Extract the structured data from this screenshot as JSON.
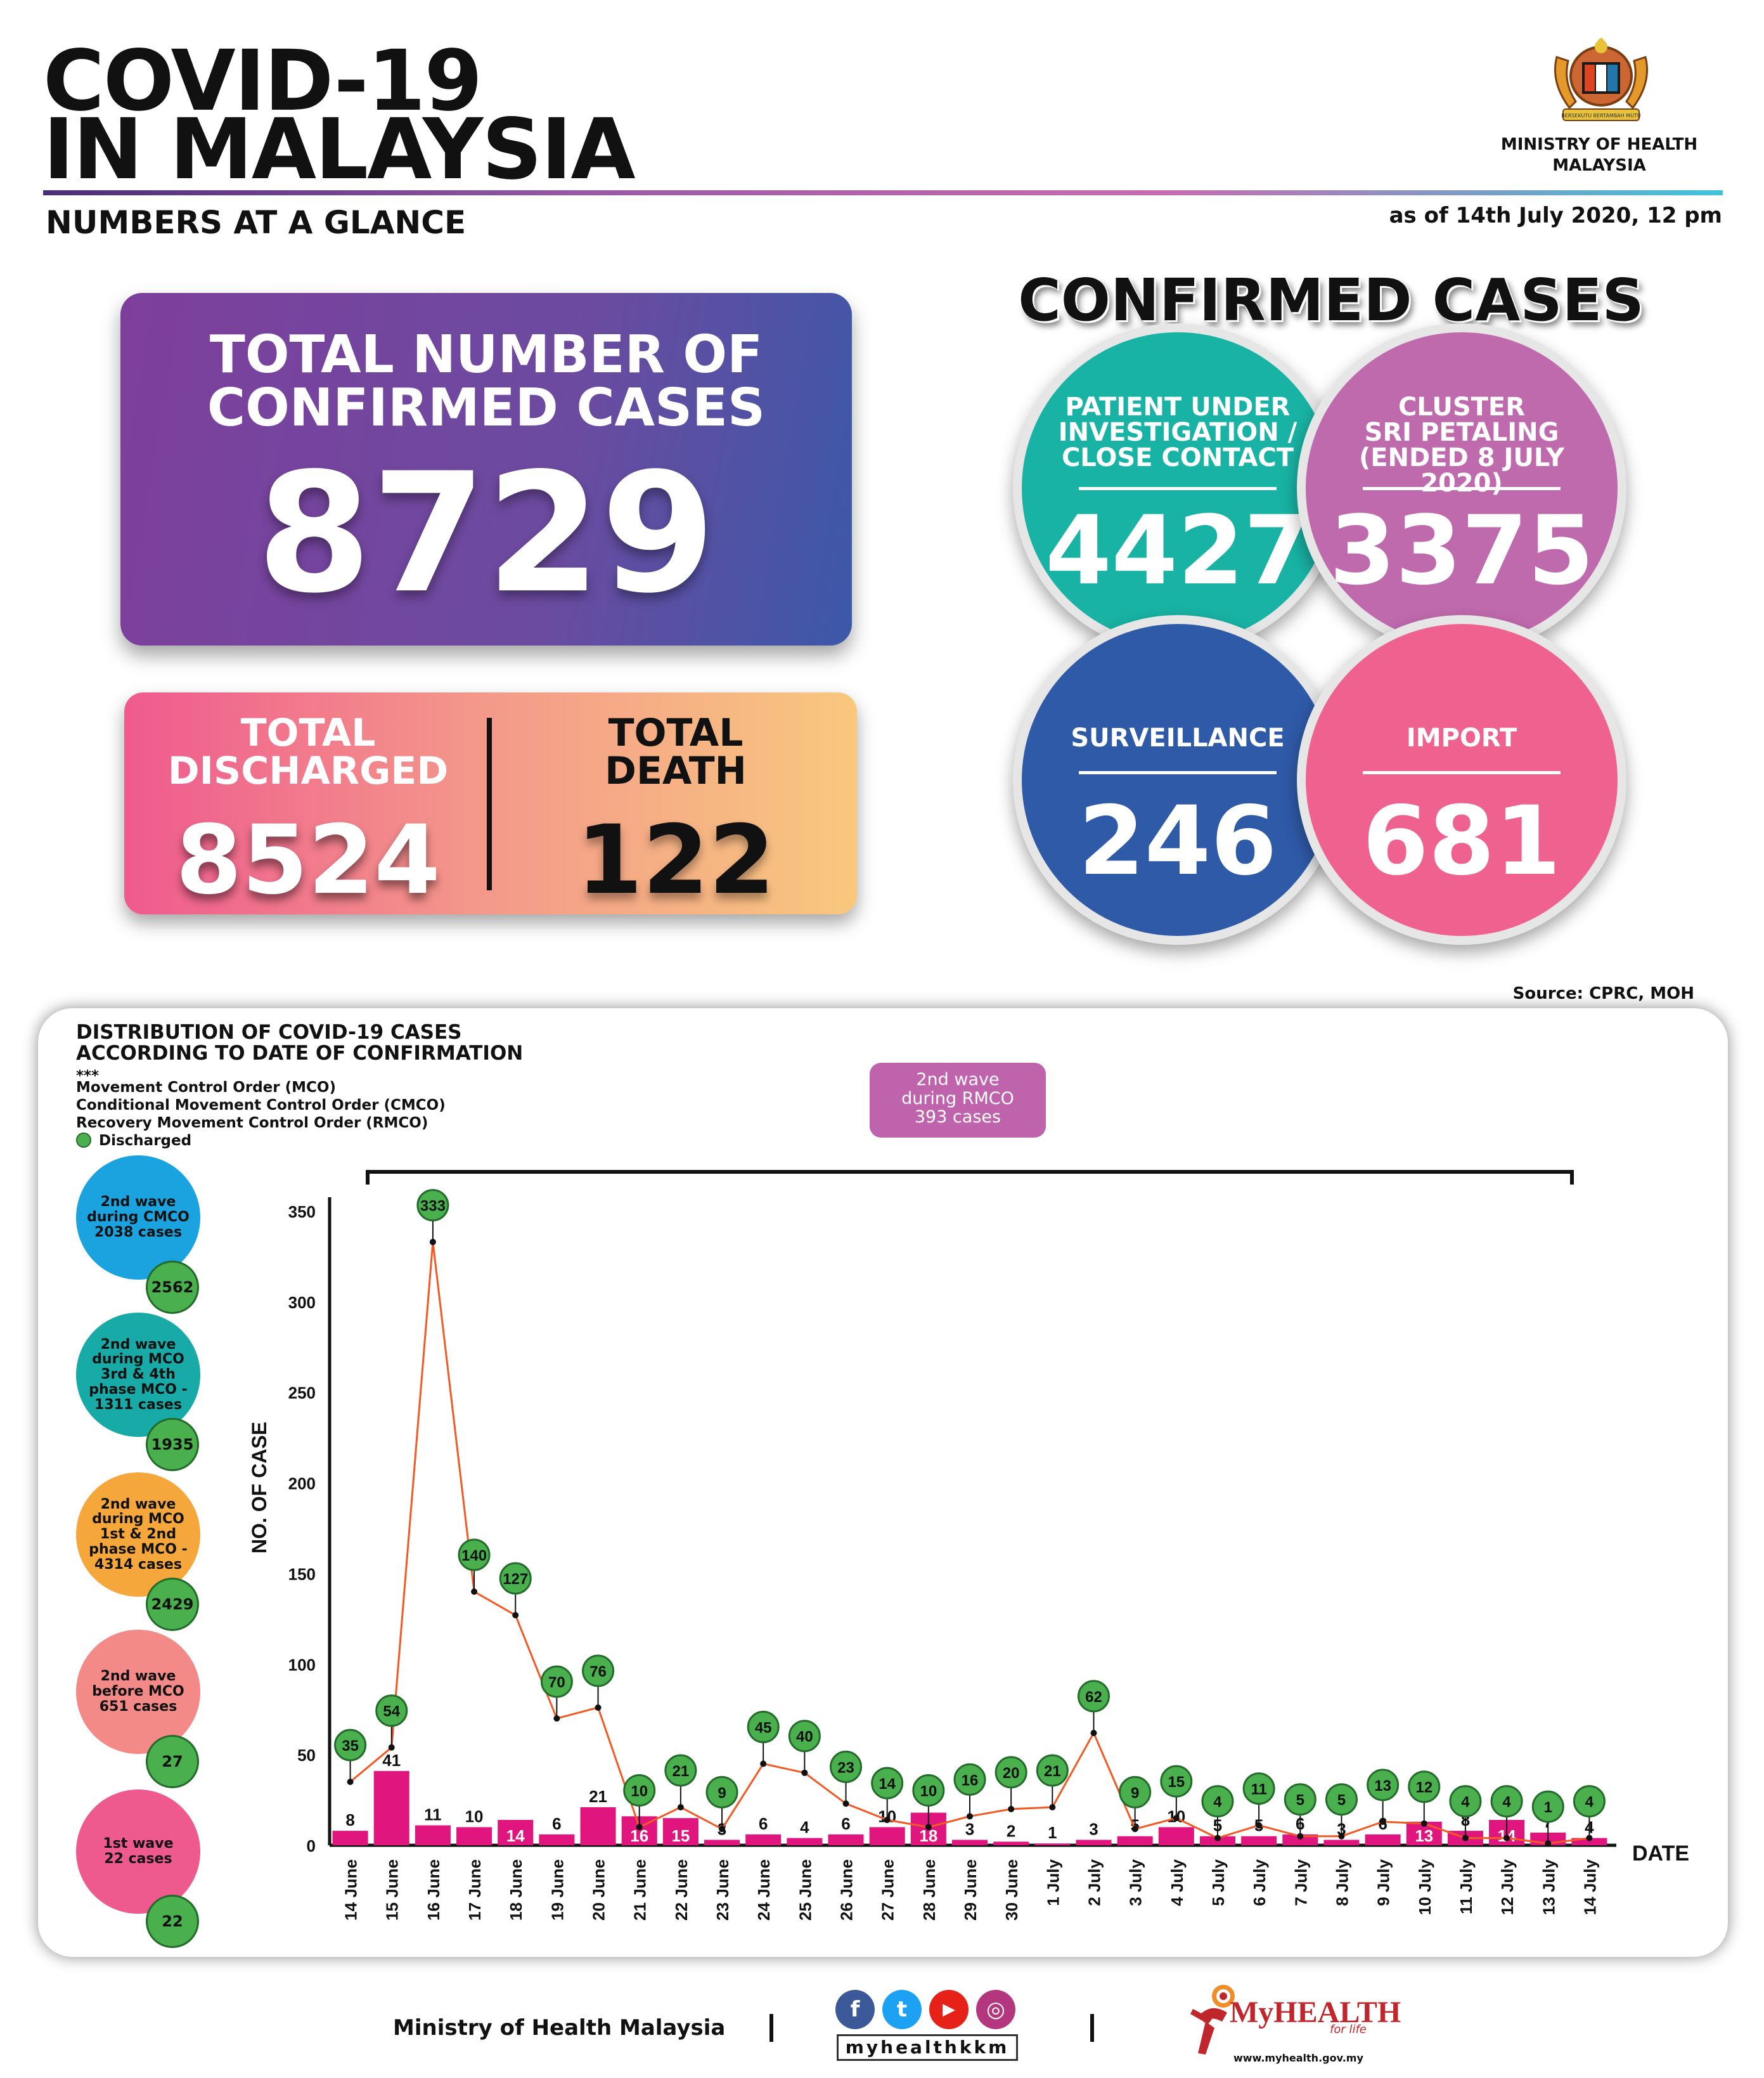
{
  "header": {
    "title_line1": "COVID-19",
    "title_line2": "IN MALAYSIA",
    "subtitle": "NUMBERS AT A GLANCE",
    "as_of": "as of 14th July 2020, 12 pm",
    "ministry_line1": "MINISTRY OF HEALTH",
    "ministry_line2": "MALAYSIA",
    "emblem_text": "BERSEKUTU BERTAMBAH MUTU"
  },
  "totals": {
    "confirmed_label_1": "TOTAL NUMBER OF",
    "confirmed_label_2": "CONFIRMED CASES",
    "confirmed_value": "8729",
    "discharged_label_1": "TOTAL",
    "discharged_label_2": "DISCHARGED",
    "discharged_value": "8524",
    "death_label_1": "TOTAL",
    "death_label_2": "DEATH",
    "death_value": "122"
  },
  "confirmed_breakdown": {
    "heading": "CONFIRMED CASES",
    "items": [
      {
        "l1": "PATIENT UNDER",
        "l2": "INVESTIGATION /",
        "l3": "CLOSE CONTACT",
        "value": "4427",
        "color": "#18b3a4"
      },
      {
        "l1": "CLUSTER",
        "l2": "SRI PETALING",
        "l3": "(ENDED 8 JULY 2020)",
        "value": "3375",
        "color": "#c06aae"
      },
      {
        "l1": "SURVEILLANCE",
        "value": "246",
        "color": "#2f5aa8"
      },
      {
        "l1": "IMPORT",
        "value": "681",
        "color": "#ef6290"
      }
    ]
  },
  "source": "Source: CPRC, MOH",
  "distribution": {
    "title_1": "DISTRIBUTION OF COVID-19 CASES",
    "title_2": "ACCORDING TO DATE OF CONFIRMATION",
    "stars": "***",
    "legend_1": "Movement Control Order (MCO)",
    "legend_2": "Conditional Movement Control Order (CMCO)",
    "legend_3": "Recovery Movement Control Order (RMCO)",
    "legend_4": "Discharged",
    "rmco_1": "2nd wave",
    "rmco_2": "during RMCO",
    "rmco_3": "393 cases",
    "waves": [
      {
        "l1": "2nd wave",
        "l2": "during CMCO",
        "l3": "2038 cases",
        "discharged": "2562",
        "color": "#1ba3e0"
      },
      {
        "l1": "2nd wave",
        "l2": "during MCO",
        "l3": "3rd & 4th",
        "l4": "phase MCO -",
        "l5": "1311 cases",
        "discharged": "1935",
        "color": "#17aaa6"
      },
      {
        "l1": "2nd wave",
        "l2": "during MCO",
        "l3": "1st & 2nd",
        "l4": "phase MCO -",
        "l5": "4314 cases",
        "discharged": "2429",
        "color": "#f6a73c"
      },
      {
        "l1": "2nd wave",
        "l2": "before MCO",
        "l3": "651 cases",
        "discharged": "27",
        "color": "#f48a87"
      },
      {
        "l1": "1st wave",
        "l2": "22 cases",
        "discharged": "22",
        "color": "#ef5a8e"
      }
    ]
  },
  "chart_data": {
    "type": "bar",
    "title": "DISTRIBUTION OF COVID-19 CASES ACCORDING TO DATE OF CONFIRMATION",
    "xlabel": "DATE",
    "ylabel": "NO. OF CASE",
    "ylim": [
      0,
      350
    ],
    "yticks": [
      0,
      50,
      100,
      150,
      200,
      250,
      300,
      350
    ],
    "categories": [
      "14 June",
      "15 June",
      "16 June",
      "17 June",
      "18 June",
      "19 June",
      "20 June",
      "21 June",
      "22 June",
      "23 June",
      "24 June",
      "25 June",
      "26 June",
      "27 June",
      "28 June",
      "29 June",
      "30 June",
      "1 July",
      "2 July",
      "3 July",
      "4 July",
      "5 July",
      "6 July",
      "7 July",
      "8 July",
      "9 July",
      "10 July",
      "11 July",
      "12 July",
      "13 July",
      "14 July"
    ],
    "series": [
      {
        "type": "bar",
        "color": "#e0157d",
        "values": [
          8,
          41,
          11,
          10,
          14,
          6,
          21,
          16,
          15,
          3,
          6,
          4,
          6,
          10,
          18,
          3,
          2,
          1,
          3,
          5,
          10,
          5,
          5,
          6,
          3,
          6,
          13,
          8,
          14,
          7,
          4
        ]
      },
      {
        "name": "Discharged",
        "type": "line",
        "color": "#f15a24",
        "values": [
          35,
          54,
          333,
          140,
          127,
          70,
          76,
          10,
          21,
          9,
          45,
          40,
          23,
          14,
          10,
          16,
          20,
          21,
          62,
          9,
          15,
          4,
          11,
          5,
          5,
          13,
          12,
          4,
          4,
          1,
          4
        ]
      }
    ]
  },
  "footer": {
    "ministry": "Ministry of Health Malaysia",
    "handle": "myhealthkkm",
    "brand": "MyHEALTH",
    "brand_tag": "for life",
    "url": "www.myhealth.gov.my",
    "social": [
      "f",
      "t",
      "▶",
      "◎"
    ]
  }
}
